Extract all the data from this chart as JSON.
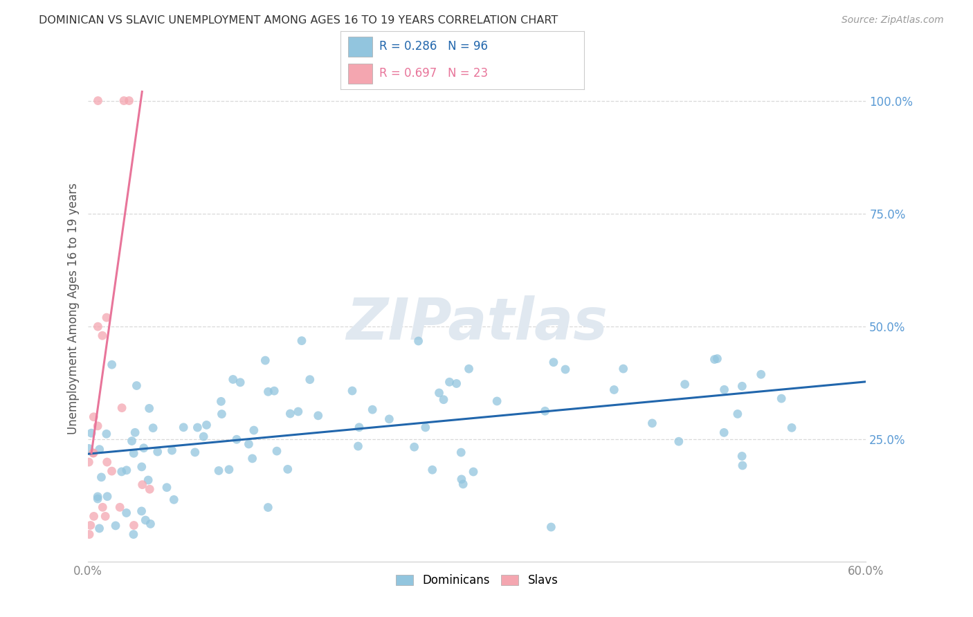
{
  "title": "DOMINICAN VS SLAVIC UNEMPLOYMENT AMONG AGES 16 TO 19 YEARS CORRELATION CHART",
  "source": "Source: ZipAtlas.com",
  "ylabel": "Unemployment Among Ages 16 to 19 years",
  "xlim": [
    0.0,
    0.6
  ],
  "ylim": [
    -0.02,
    1.1
  ],
  "dominican_R": 0.286,
  "dominican_N": 96,
  "slavic_R": 0.697,
  "slavic_N": 23,
  "dominican_color": "#92c5de",
  "slavic_color": "#f4a6b0",
  "dominican_line_color": "#2166ac",
  "slavic_line_color": "#d6604d",
  "legend_labels": [
    "Dominicans",
    "Slavs"
  ],
  "background_color": "#ffffff",
  "watermark": "ZIPatlas",
  "grid_color": "#d9d9d9",
  "tick_color": "#888888",
  "right_tick_color": "#5b9bd5",
  "title_color": "#333333",
  "source_color": "#999999",
  "ylabel_color": "#555555"
}
